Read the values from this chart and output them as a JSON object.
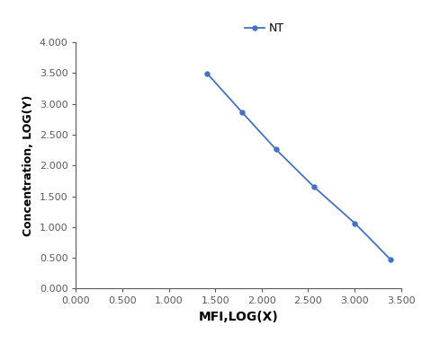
{
  "x": [
    1.415,
    1.785,
    2.155,
    2.565,
    3.005,
    3.39
  ],
  "y": [
    3.49,
    2.87,
    2.26,
    1.65,
    1.06,
    0.47
  ],
  "line_color": "#4472C4",
  "marker": "o",
  "marker_size": 4,
  "legend_label": "NT",
  "xlabel": "MFI,LOG(X)",
  "ylabel": "Concentration, LOG(Y)",
  "xlim": [
    0.0,
    3.5
  ],
  "ylim": [
    0.0,
    4.0
  ],
  "xticks": [
    0.0,
    0.5,
    1.0,
    1.5,
    2.0,
    2.5,
    3.0,
    3.5
  ],
  "yticks": [
    0.0,
    0.5,
    1.0,
    1.5,
    2.0,
    2.5,
    3.0,
    3.5,
    4.0
  ],
  "xlabel_fontsize": 10,
  "ylabel_fontsize": 9,
  "legend_fontsize": 9,
  "tick_fontsize": 8,
  "spine_color": "#595959",
  "background_color": "#ffffff"
}
